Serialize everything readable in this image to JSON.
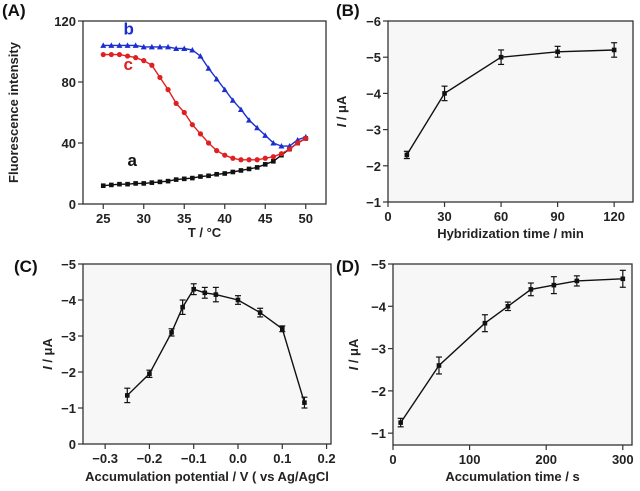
{
  "chart_data": [
    {
      "panel": "(A)",
      "type": "line",
      "xlabel": "T / °C",
      "ylabel": "Fluorescence intensity",
      "xlim": [
        22.5,
        52.5
      ],
      "ylim": [
        0,
        120
      ],
      "xticks": [
        25,
        30,
        35,
        40,
        45,
        50
      ],
      "yticks": [
        0,
        40,
        80,
        120
      ],
      "series": [
        {
          "name": "a",
          "color": "#111111",
          "marker": "square",
          "x": [
            25,
            26,
            27,
            28,
            29,
            30,
            31,
            32,
            33,
            34,
            35,
            36,
            37,
            38,
            39,
            40,
            41,
            42,
            43,
            44,
            45,
            46,
            47,
            48,
            49,
            50
          ],
          "y": [
            12,
            12.5,
            13,
            13,
            13.5,
            13.5,
            14,
            14.5,
            15,
            16,
            16.5,
            17,
            18,
            18.5,
            19.5,
            20,
            21,
            22,
            23,
            24,
            26,
            28,
            32,
            36,
            40,
            43
          ],
          "label_at": [
            28,
            25
          ]
        },
        {
          "name": "b",
          "color": "#1a2fd0",
          "marker": "triangle",
          "x": [
            25,
            26,
            27,
            28,
            29,
            30,
            31,
            32,
            33,
            34,
            35,
            36,
            37,
            38,
            39,
            40,
            41,
            42,
            43,
            44,
            45,
            46,
            47,
            48,
            49,
            50
          ],
          "y": [
            104,
            104,
            104,
            104,
            104,
            103,
            103,
            103,
            103,
            102,
            102,
            101,
            97,
            89,
            82,
            75,
            68,
            62,
            55,
            50,
            45,
            40,
            38,
            38,
            42,
            44
          ],
          "label_at": [
            27.5,
            111
          ]
        },
        {
          "name": "c",
          "color": "#e02020",
          "marker": "circle",
          "x": [
            25,
            26,
            27,
            28,
            29,
            30,
            31,
            32,
            33,
            34,
            35,
            36,
            37,
            38,
            39,
            40,
            41,
            42,
            43,
            44,
            45,
            46,
            47,
            48,
            49,
            50
          ],
          "y": [
            98,
            98,
            98,
            97,
            96,
            94,
            91,
            83,
            75,
            66,
            60,
            52,
            46,
            40,
            35,
            32,
            30,
            29,
            29,
            29,
            30,
            31,
            33,
            36,
            40,
            43
          ],
          "label_at": [
            27.5,
            88
          ]
        }
      ]
    },
    {
      "panel": "(B)",
      "type": "line",
      "xlabel": "Hybridization time / min",
      "ylabel_var": "I",
      "ylabel_unit": " / μA",
      "xlim": [
        0,
        130
      ],
      "ylim": [
        -1,
        -6
      ],
      "xticks": [
        0,
        30,
        60,
        90,
        120
      ],
      "yticks": [
        -1,
        -2,
        -3,
        -4,
        -5,
        -6
      ],
      "xticklabels": [
        "0",
        "30",
        "60",
        "90",
        "120"
      ],
      "yticklabels": [
        "−1",
        "−2",
        "−3",
        "−4",
        "−5",
        "−6"
      ],
      "series": [
        {
          "name": "I",
          "color": "#111111",
          "x": [
            10,
            30,
            60,
            90,
            120
          ],
          "y": [
            -2.3,
            -4.0,
            -5.0,
            -5.15,
            -5.2
          ],
          "err": [
            0.1,
            0.2,
            0.2,
            0.15,
            0.2
          ]
        }
      ]
    },
    {
      "panel": "(C)",
      "type": "line",
      "xlabel": "Accumulation potential / V ( vs Ag/AgCl",
      "ylabel_var": "I",
      "ylabel_unit": " / μA",
      "xlim": [
        -0.35,
        0.21
      ],
      "ylim": [
        0,
        -5
      ],
      "xticks": [
        -0.3,
        -0.2,
        -0.1,
        0.0,
        0.1,
        0.2
      ],
      "yticks": [
        0,
        -1,
        -2,
        -3,
        -4,
        -5
      ],
      "xticklabels": [
        "−0.3",
        "−0.2",
        "−0.1",
        "0.0",
        "0.1",
        "0.2"
      ],
      "yticklabels": [
        "0",
        "−1",
        "−2",
        "−3",
        "−4",
        "−5"
      ],
      "series": [
        {
          "name": "I",
          "color": "#111111",
          "x": [
            -0.25,
            -0.2,
            -0.15,
            -0.125,
            -0.1,
            -0.075,
            -0.05,
            0,
            0.05,
            0.1,
            0.15
          ],
          "y": [
            -1.35,
            -1.95,
            -3.1,
            -3.8,
            -4.3,
            -4.2,
            -4.15,
            -4.0,
            -3.65,
            -3.2,
            -1.15
          ],
          "err": [
            0.2,
            0.1,
            0.1,
            0.2,
            0.15,
            0.15,
            0.2,
            0.12,
            0.12,
            0.08,
            0.15
          ]
        }
      ]
    },
    {
      "panel": "(D)",
      "type": "line",
      "xlabel": "Accumulation time / s",
      "ylabel_var": "I",
      "ylabel_unit": " / μA",
      "xlim": [
        0,
        312
      ],
      "ylim": [
        -0.72,
        -5
      ],
      "xticks": [
        0,
        100,
        200,
        300
      ],
      "yticks": [
        -1,
        -2,
        -3,
        -4,
        -5
      ],
      "xticklabels": [
        "0",
        "100",
        "200",
        "300"
      ],
      "yticklabels": [
        "−1",
        "−2",
        "−3",
        "−4",
        "−5"
      ],
      "series": [
        {
          "name": "I",
          "color": "#111111",
          "x": [
            10,
            60,
            120,
            150,
            180,
            210,
            240,
            300
          ],
          "y": [
            -1.25,
            -2.6,
            -3.6,
            -4.0,
            -4.4,
            -4.5,
            -4.6,
            -4.65
          ],
          "err": [
            0.1,
            0.2,
            0.2,
            0.1,
            0.15,
            0.2,
            0.12,
            0.2
          ]
        }
      ]
    }
  ]
}
